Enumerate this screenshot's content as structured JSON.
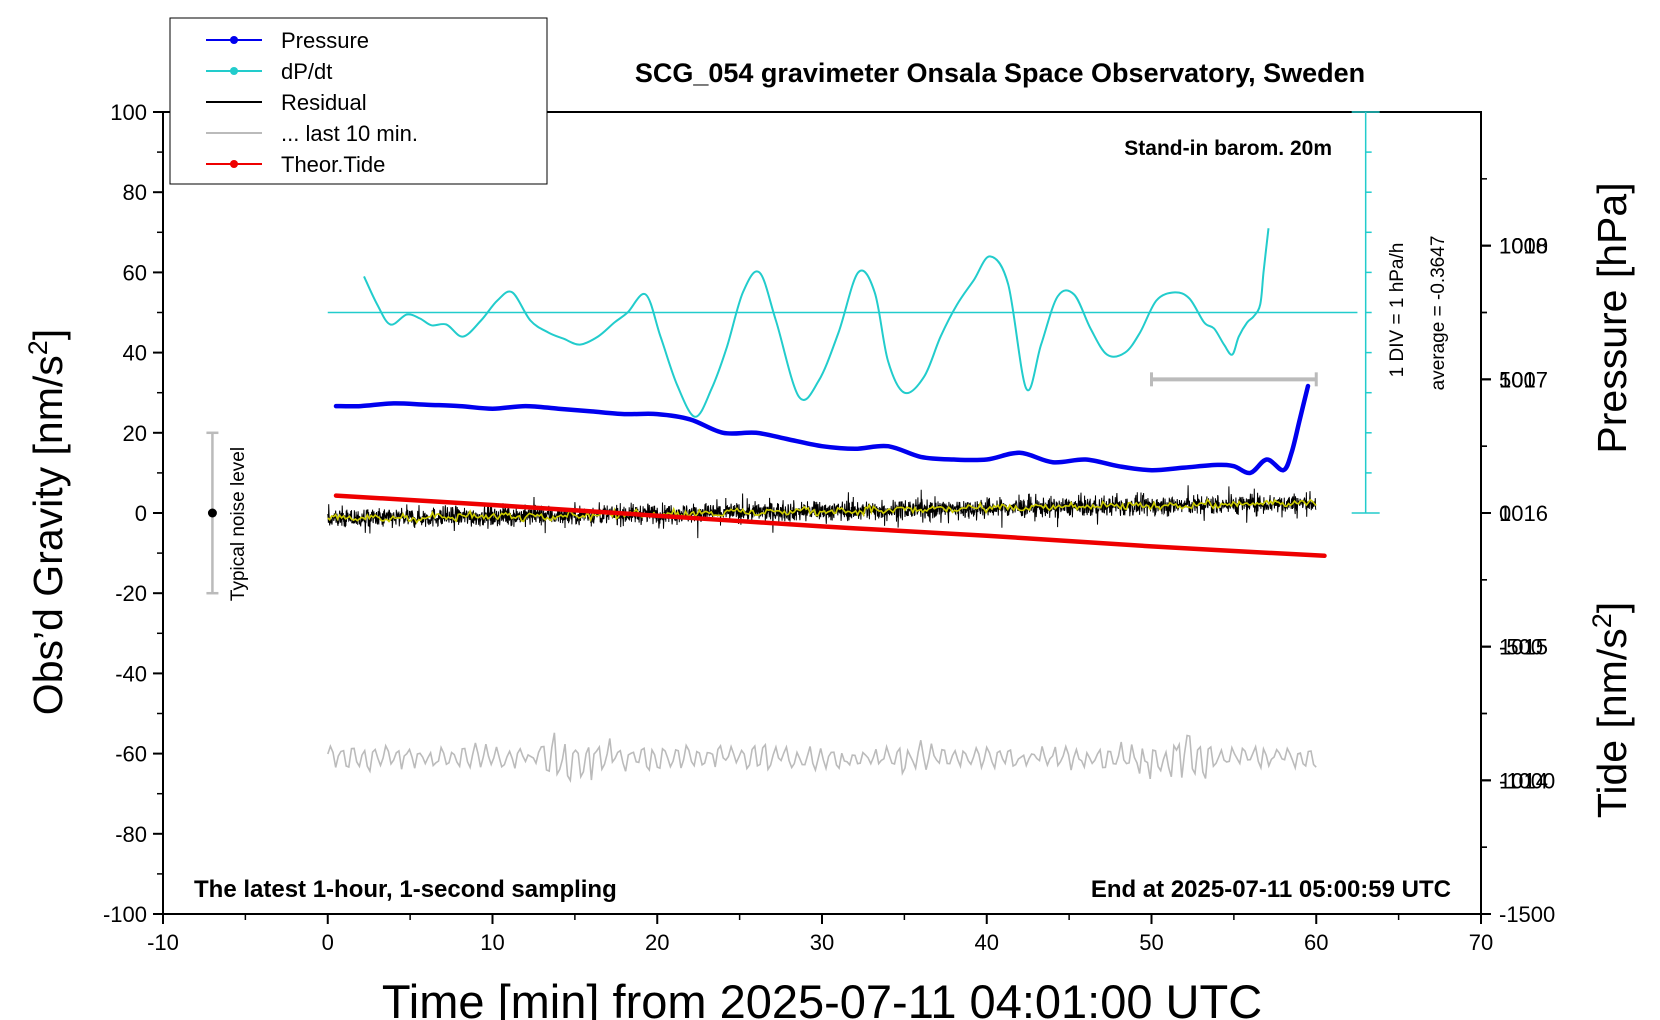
{
  "chart_data": {
    "type": "line",
    "title": "SCG_054 gravimeter Onsala Space Observatory, Sweden",
    "xlabel": "Time [min] from 2025-07-11 04:01:00 UTC",
    "ylabel_left": "Obs’d Gravity [nm/s",
    "ylabel_right_pressure": "Pressure [hPa]",
    "ylabel_right_tide": "Tide [nm/s",
    "unit_superscript": "2",
    "xlim": [
      -10,
      70
    ],
    "ylim": [
      -100,
      100
    ],
    "pressure_lim": [
      1013,
      1019
    ],
    "tide_lim": [
      -1500,
      1500
    ],
    "x_ticks": [
      -10,
      0,
      10,
      20,
      30,
      40,
      50,
      60,
      70
    ],
    "y_ticks": [
      100,
      80,
      60,
      40,
      20,
      0,
      -20,
      -40,
      -60,
      -80,
      -100
    ],
    "pressure_ticks": [
      1018,
      1017,
      1016,
      1015,
      1014
    ],
    "tide_ticks": [
      1000,
      500,
      0,
      -500,
      -1000,
      -1500
    ],
    "annotations": {
      "stand_in": "Stand-in barom. 20m",
      "div_label": "1 DIV = 1 hPa/h",
      "average_label": "average = -0.3647",
      "noise_label": "Typical noise level",
      "latest_label": "The latest 1-hour, 1-second sampling",
      "end_label": "End at 2025-07-11 05:00:59 UTC"
    },
    "legend": [
      {
        "name": "Pressure",
        "color": "#0000ee",
        "marker": true
      },
      {
        "name": "dP/dt",
        "color": "#22cccc",
        "marker": true
      },
      {
        "name": "Residual",
        "color": "#000000",
        "marker": false
      },
      {
        "name": "... last 10 min.",
        "color": "#bbbbbb",
        "marker": false
      },
      {
        "name": "Theor.Tide",
        "color": "#ee0000",
        "marker": true
      }
    ],
    "series": [
      {
        "name": "Pressure",
        "axis": "pressure",
        "color": "#0000ee",
        "x": [
          0.5,
          2,
          4,
          6,
          8,
          10,
          12,
          14,
          16,
          18,
          20,
          22,
          24,
          26,
          28,
          30,
          32,
          34,
          36,
          38,
          40,
          42,
          44,
          46,
          48,
          50,
          52,
          54,
          55,
          56,
          57,
          58,
          58.5,
          59,
          59.5
        ],
        "values": [
          1016.8,
          1016.8,
          1016.82,
          1016.81,
          1016.8,
          1016.78,
          1016.8,
          1016.78,
          1016.76,
          1016.74,
          1016.74,
          1016.7,
          1016.6,
          1016.6,
          1016.55,
          1016.5,
          1016.48,
          1016.5,
          1016.42,
          1016.4,
          1016.4,
          1016.45,
          1016.38,
          1016.4,
          1016.35,
          1016.32,
          1016.34,
          1016.36,
          1016.35,
          1016.3,
          1016.4,
          1016.32,
          1016.45,
          1016.7,
          1016.95
        ]
      },
      {
        "name": "dP/dt",
        "axis": "gravity",
        "color": "#22cccc",
        "x": [
          2.2,
          3,
          3.8,
          4.8,
          5.6,
          6.3,
          7.2,
          8.2,
          9.3,
          10.3,
          11.2,
          12.3,
          13.4,
          14.3,
          15.3,
          16.4,
          17.4,
          18.2,
          19.3,
          20.2,
          21.2,
          22.3,
          23.3,
          24.2,
          25.2,
          26.2,
          27.2,
          28.6,
          29.8,
          31,
          32.2,
          33.2,
          34,
          35,
          36.2,
          37.2,
          38.2,
          39.2,
          40.2,
          41.3,
          42.4,
          43.3,
          44.3,
          45.3,
          46.3,
          47.3,
          48.4,
          49.3,
          50.3,
          51.4,
          52.3,
          53.2,
          53.8,
          54.4,
          54.9,
          55.3,
          55.8,
          56.2,
          56.6,
          56.8,
          57.1
        ],
        "values": [
          59,
          52,
          47,
          49.5,
          48.5,
          46.8,
          47,
          44,
          48,
          53,
          55,
          48,
          45,
          43.5,
          42,
          44,
          47.5,
          50,
          54.5,
          44,
          32,
          24,
          31,
          41,
          55,
          60,
          48,
          29,
          33,
          45,
          60,
          55,
          38,
          30,
          34,
          44,
          52,
          58,
          64,
          57,
          31,
          42,
          54,
          54.5,
          46,
          39.5,
          40,
          45,
          53,
          55,
          53.5,
          47.5,
          46,
          42,
          39.5,
          44,
          47.5,
          49,
          52,
          60,
          71
        ]
      },
      {
        "name": "Residual",
        "axis": "gravity",
        "color": "#000000",
        "x_range": [
          0,
          60
        ],
        "trend": [
          -1.5,
          2.5
        ],
        "peak_to_peak": [
          -8,
          8
        ]
      },
      {
        "name": "Residual smoothed",
        "axis": "gravity",
        "color": "#cccc00",
        "x_range": [
          0,
          60
        ],
        "trend": [
          -1.5,
          2.5
        ]
      },
      {
        "name": "... last 10 min.",
        "axis": "gravity",
        "color": "#bbbbbb",
        "x_range": [
          0,
          60
        ],
        "center": -61,
        "range": [
          -70,
          -54
        ]
      },
      {
        "name": "Theor.Tide",
        "axis": "tide",
        "color": "#ee0000",
        "x": [
          0.5,
          10,
          20,
          30,
          40,
          50,
          60.5
        ],
        "values": [
          65,
          30,
          -10,
          -50,
          -85,
          -125,
          -160
        ]
      }
    ],
    "noise_bar": {
      "x": -7,
      "center": 0,
      "range": [
        -20,
        20
      ]
    },
    "scale_bar": {
      "x": [
        50,
        60
      ],
      "tide_value": 500
    },
    "dpdt_reference": {
      "level": 50,
      "x_end": 62.5
    },
    "dpdt_axis": {
      "x": 63,
      "range": [
        0,
        100
      ],
      "div": 10
    }
  }
}
